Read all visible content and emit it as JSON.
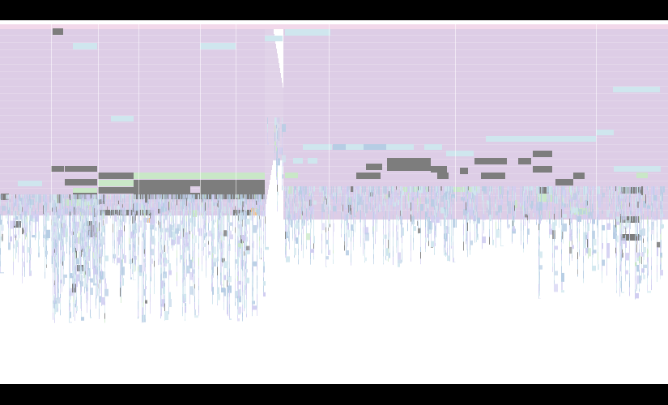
{
  "colors": {
    "letterbox": "#000000",
    "canvas": "#ffffff",
    "root_band": "#f2d8ea",
    "thread_band": "#ddcde6",
    "frame_grey": "#7d7d7d",
    "frame_green": "#c9e7c7",
    "frame_cyan": "#cfe6ee",
    "frame_blue": "#b6cde4",
    "frame_lavender": "#d0cdf1",
    "frame_orange": "#f2c48d"
  },
  "icons": [],
  "text": []
}
